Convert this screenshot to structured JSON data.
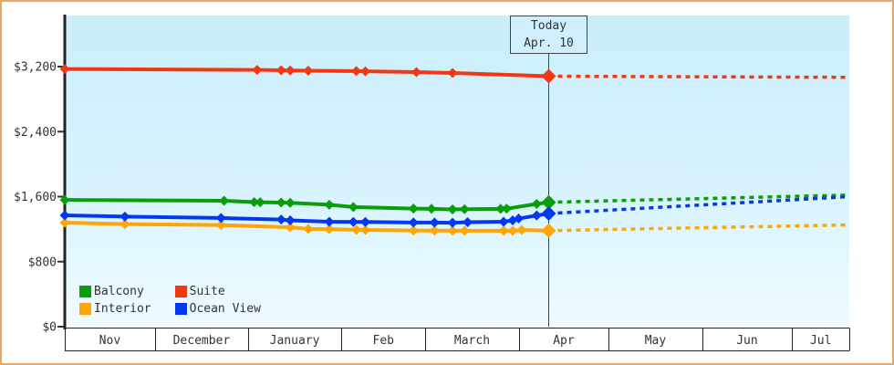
{
  "frame": {
    "border_color": "#eba561",
    "background": "#ffffff"
  },
  "chart_data": {
    "type": "line",
    "title": "",
    "description": "Cruise cabin price history by category with projection after today",
    "plot_background_top": "#cbeefb",
    "plot_background_bottom": "#effbff",
    "axis_color": "#333333",
    "grid": false,
    "ylim": [
      0,
      3840
    ],
    "y_axis": {
      "ticks": [
        {
          "label": "$0",
          "value": 0
        },
        {
          "label": "$800",
          "value": 800
        },
        {
          "label": "$1,600",
          "value": 1600
        },
        {
          "label": "$2,400",
          "value": 2400
        },
        {
          "label": "$3,200",
          "value": 3200
        }
      ]
    },
    "x_axis": {
      "months": [
        {
          "label": "Nov",
          "days": 30
        },
        {
          "label": "December",
          "days": 31
        },
        {
          "label": "January",
          "days": 31
        },
        {
          "label": "Feb",
          "days": 28
        },
        {
          "label": "March",
          "days": 31
        },
        {
          "label": "Apr",
          "days": 30
        },
        {
          "label": "May",
          "days": 31
        },
        {
          "label": "Jun",
          "days": 30
        },
        {
          "label": "Jul",
          "days": 19
        }
      ]
    },
    "today": {
      "label_line1": "Today",
      "label_line2": "Apr. 10",
      "day": 161
    },
    "series": [
      {
        "name": "Suite",
        "color": "#f23812",
        "points": [
          [
            0,
            3170
          ],
          [
            64,
            3160
          ],
          [
            72,
            3155
          ],
          [
            75,
            3152
          ],
          [
            81,
            3150
          ],
          [
            97,
            3145
          ],
          [
            100,
            3142
          ],
          [
            117,
            3132
          ],
          [
            129,
            3122
          ],
          [
            161,
            3082
          ]
        ],
        "projection": [
          [
            161,
            3082
          ],
          [
            261,
            3068
          ]
        ]
      },
      {
        "name": "Balcony",
        "color": "#0a9e0a",
        "points": [
          [
            0,
            1560
          ],
          [
            53,
            1550
          ],
          [
            63,
            1533
          ],
          [
            65,
            1531
          ],
          [
            72,
            1527
          ],
          [
            75,
            1524
          ],
          [
            88,
            1500
          ],
          [
            96,
            1472
          ],
          [
            116,
            1452
          ],
          [
            122,
            1450
          ],
          [
            129,
            1443
          ],
          [
            133,
            1446
          ],
          [
            145,
            1450
          ],
          [
            147,
            1452
          ],
          [
            157,
            1510
          ],
          [
            161,
            1530
          ]
        ],
        "projection": [
          [
            161,
            1530
          ],
          [
            261,
            1620
          ]
        ]
      },
      {
        "name": "Interior",
        "color": "#ffa505",
        "points": [
          [
            0,
            1280
          ],
          [
            20,
            1262
          ],
          [
            52,
            1250
          ],
          [
            75,
            1222
          ],
          [
            81,
            1203
          ],
          [
            88,
            1200
          ],
          [
            97,
            1192
          ],
          [
            100,
            1190
          ],
          [
            116,
            1183
          ],
          [
            123,
            1182
          ],
          [
            129,
            1180
          ],
          [
            133,
            1180
          ],
          [
            146,
            1180
          ],
          [
            149,
            1180
          ],
          [
            152,
            1190
          ],
          [
            161,
            1182
          ]
        ],
        "projection": [
          [
            161,
            1182
          ],
          [
            261,
            1252
          ]
        ]
      },
      {
        "name": "Ocean View",
        "color": "#0537f0",
        "points": [
          [
            0,
            1370
          ],
          [
            20,
            1355
          ],
          [
            52,
            1337
          ],
          [
            72,
            1318
          ],
          [
            75,
            1308
          ],
          [
            88,
            1291
          ],
          [
            96,
            1289
          ],
          [
            100,
            1288
          ],
          [
            116,
            1281
          ],
          [
            123,
            1281
          ],
          [
            129,
            1279
          ],
          [
            134,
            1286
          ],
          [
            146,
            1291
          ],
          [
            149,
            1308
          ],
          [
            151,
            1330
          ],
          [
            157,
            1368
          ],
          [
            161,
            1392
          ]
        ],
        "projection": [
          [
            161,
            1392
          ],
          [
            261,
            1600
          ]
        ]
      }
    ],
    "legend": {
      "position": "bottom-left",
      "items": [
        {
          "label": "Balcony",
          "color": "#0a9e0a"
        },
        {
          "label": "Suite",
          "color": "#f23812"
        },
        {
          "label": "Interior",
          "color": "#ffa505"
        },
        {
          "label": "Ocean View",
          "color": "#0537f0"
        }
      ]
    }
  }
}
